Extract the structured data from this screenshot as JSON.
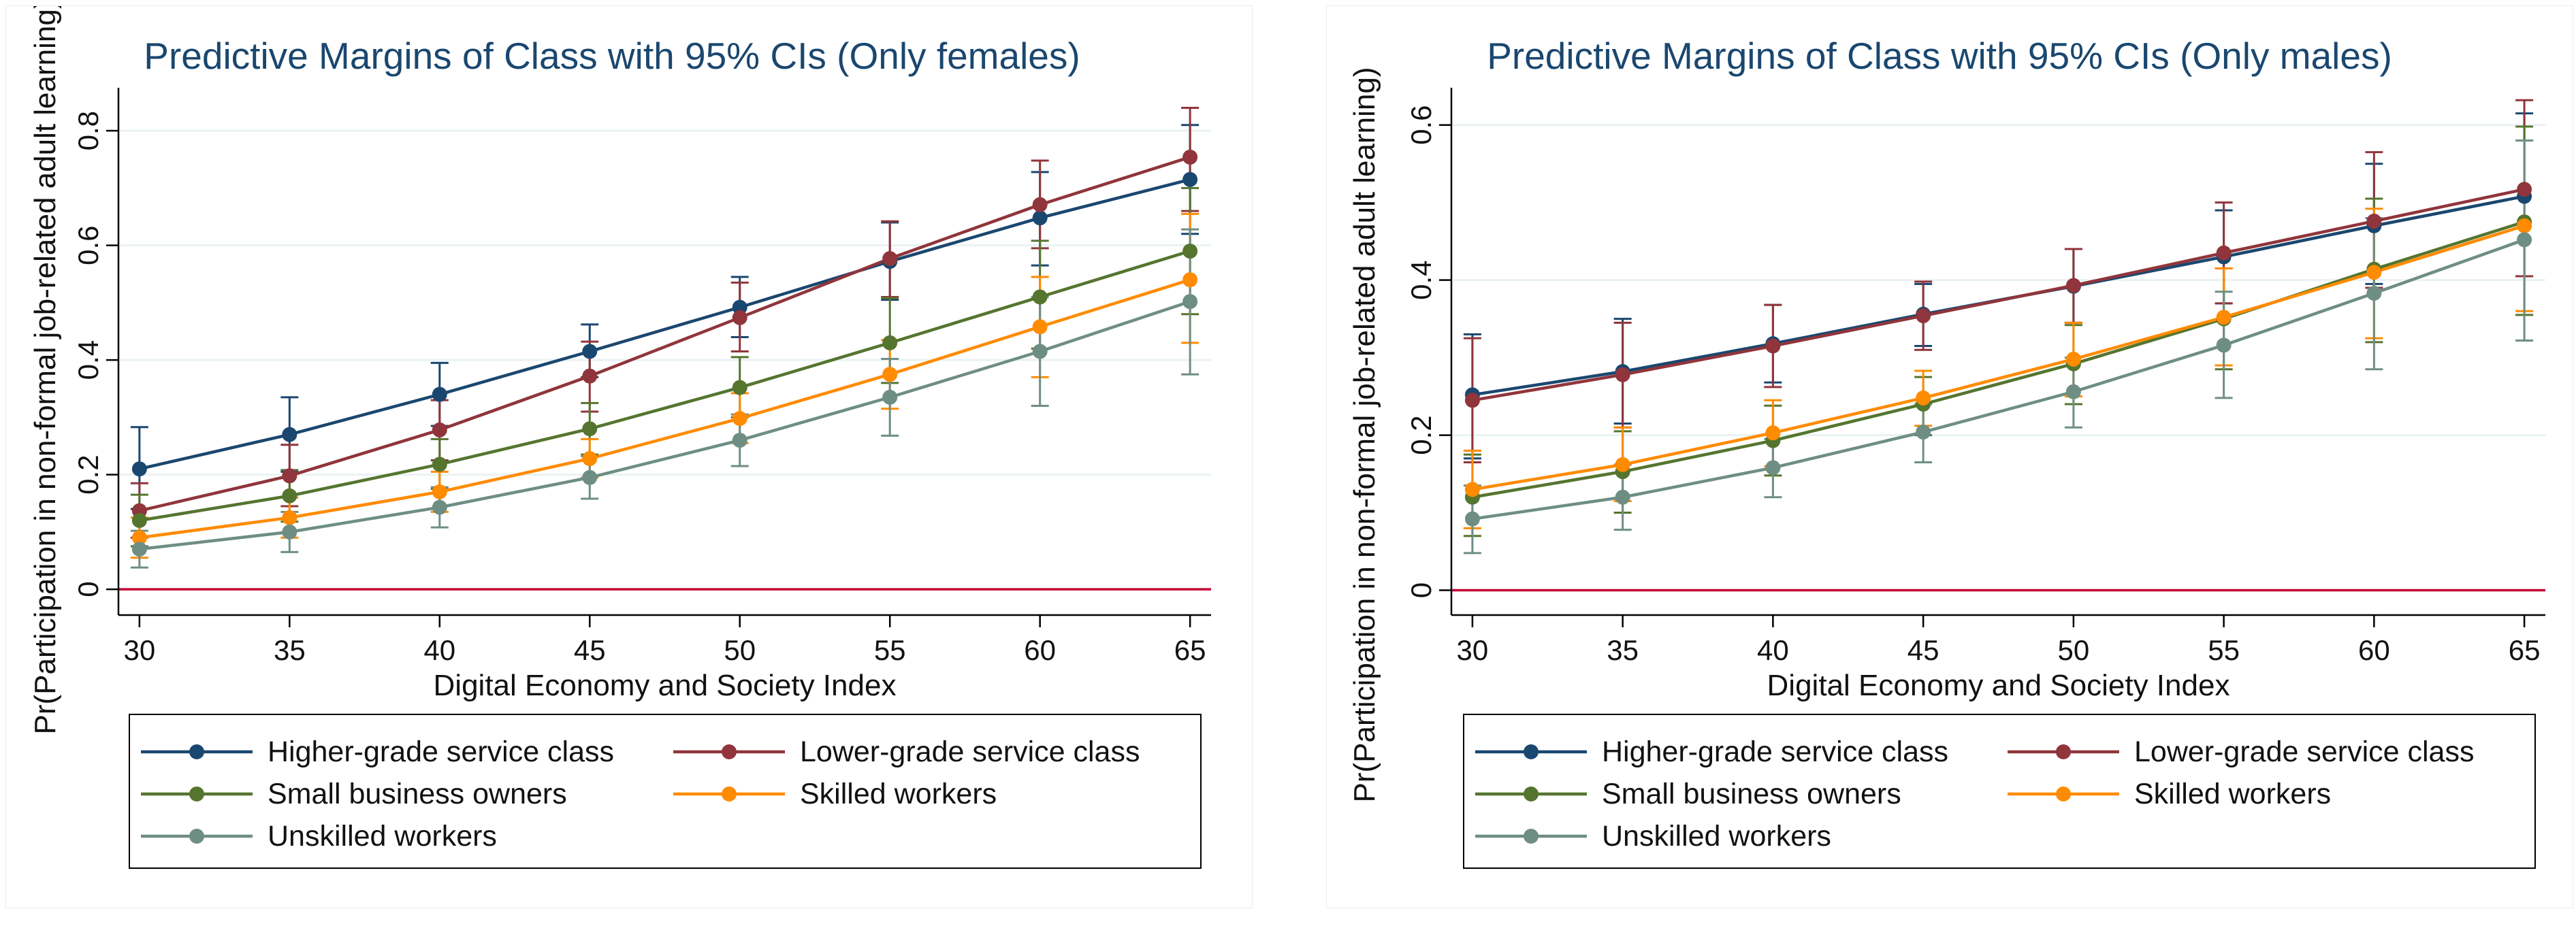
{
  "colors": {
    "higher": "#1a476f",
    "lower": "#90353b",
    "small": "#55752f",
    "skilled": "#ff8b00",
    "unskilled": "#6e8e84",
    "title": "#1a476f",
    "grid": "#eaf2f3",
    "zeroline": "#c10534",
    "axis": "#000000"
  },
  "chart_data": [
    {
      "type": "line",
      "title": "Predictive Margins of Class with 95% CIs (Only females)",
      "xlabel": "Digital Economy and Society Index",
      "ylabel": "Pr(Participation in non-formal job-related adult learning)",
      "x": [
        30,
        35,
        40,
        45,
        50,
        55,
        60,
        65
      ],
      "xticks": [
        "30",
        "35",
        "40",
        "45",
        "50",
        "55",
        "60",
        "65"
      ],
      "yticks": [
        "0",
        "0.2",
        "0.4",
        "0.6",
        "0.8"
      ],
      "ylim": [
        -0.045,
        0.875
      ],
      "xlim": [
        29.3,
        65.7
      ],
      "reference_line": 0,
      "legend_position": "bottom",
      "series": [
        {
          "name": "Higher-grade service class",
          "color_key": "higher",
          "values": [
            0.21,
            0.27,
            0.34,
            0.415,
            0.492,
            0.572,
            0.648,
            0.715
          ],
          "ci_low": [
            0.14,
            0.205,
            0.285,
            0.37,
            0.44,
            0.505,
            0.565,
            0.62
          ],
          "ci_high": [
            0.283,
            0.335,
            0.395,
            0.462,
            0.545,
            0.64,
            0.728,
            0.81
          ]
        },
        {
          "name": "Lower-grade service class",
          "color_key": "lower",
          "values": [
            0.137,
            0.198,
            0.278,
            0.372,
            0.474,
            0.577,
            0.671,
            0.754
          ],
          "ci_low": [
            0.09,
            0.145,
            0.225,
            0.31,
            0.415,
            0.51,
            0.595,
            0.66
          ],
          "ci_high": [
            0.185,
            0.252,
            0.33,
            0.432,
            0.535,
            0.642,
            0.748,
            0.84
          ]
        },
        {
          "name": "Small business owners",
          "color_key": "small",
          "values": [
            0.12,
            0.163,
            0.218,
            0.28,
            0.352,
            0.43,
            0.51,
            0.59
          ],
          "ci_low": [
            0.075,
            0.118,
            0.175,
            0.235,
            0.3,
            0.36,
            0.42,
            0.48
          ],
          "ci_high": [
            0.165,
            0.208,
            0.262,
            0.325,
            0.405,
            0.508,
            0.608,
            0.7
          ]
        },
        {
          "name": "Skilled workers",
          "color_key": "skilled",
          "values": [
            0.09,
            0.125,
            0.17,
            0.228,
            0.298,
            0.375,
            0.458,
            0.54
          ],
          "ci_low": [
            0.055,
            0.09,
            0.135,
            0.195,
            0.255,
            0.315,
            0.37,
            0.43
          ],
          "ci_high": [
            0.125,
            0.16,
            0.205,
            0.262,
            0.342,
            0.435,
            0.545,
            0.655
          ]
        },
        {
          "name": "Unskilled workers",
          "color_key": "unskilled",
          "values": [
            0.07,
            0.1,
            0.143,
            0.195,
            0.26,
            0.335,
            0.415,
            0.502
          ],
          "ci_low": [
            0.038,
            0.065,
            0.108,
            0.158,
            0.215,
            0.268,
            0.32,
            0.375
          ],
          "ci_high": [
            0.102,
            0.135,
            0.178,
            0.232,
            0.305,
            0.402,
            0.51,
            0.628
          ]
        }
      ],
      "legend": [
        "Higher-grade service class",
        "Lower-grade service class",
        "Small business owners",
        "Skilled workers",
        "Unskilled workers"
      ]
    },
    {
      "type": "line",
      "title": "Predictive Margins of Class with 95% CIs (Only males)",
      "xlabel": "Digital Economy and Society Index",
      "ylabel": "Pr(Participation in non-formal job-related adult learning)",
      "x": [
        30,
        35,
        40,
        45,
        50,
        55,
        60,
        65
      ],
      "xticks": [
        "30",
        "35",
        "40",
        "45",
        "50",
        "55",
        "60",
        "65"
      ],
      "yticks": [
        "0",
        "0.2",
        "0.4",
        "0.6"
      ],
      "ylim": [
        -0.032,
        0.648
      ],
      "xlim": [
        29.3,
        65.7
      ],
      "reference_line": 0,
      "legend_position": "bottom",
      "series": [
        {
          "name": "Higher-grade service class",
          "color_key": "higher",
          "values": [
            0.252,
            0.282,
            0.318,
            0.356,
            0.392,
            0.43,
            0.47,
            0.508
          ],
          "ci_low": [
            0.17,
            0.215,
            0.268,
            0.315,
            0.345,
            0.37,
            0.395,
            0.405
          ],
          "ci_high": [
            0.33,
            0.35,
            0.368,
            0.395,
            0.44,
            0.49,
            0.55,
            0.615
          ]
        },
        {
          "name": "Lower-grade service class",
          "color_key": "lower",
          "values": [
            0.245,
            0.278,
            0.315,
            0.354,
            0.393,
            0.435,
            0.476,
            0.517
          ],
          "ci_low": [
            0.165,
            0.21,
            0.262,
            0.31,
            0.345,
            0.37,
            0.39,
            0.405
          ],
          "ci_high": [
            0.325,
            0.345,
            0.368,
            0.398,
            0.44,
            0.5,
            0.565,
            0.632
          ]
        },
        {
          "name": "Small business owners",
          "color_key": "small",
          "values": [
            0.12,
            0.153,
            0.193,
            0.24,
            0.292,
            0.35,
            0.414,
            0.475
          ],
          "ci_low": [
            0.07,
            0.1,
            0.148,
            0.2,
            0.24,
            0.285,
            0.32,
            0.355
          ],
          "ci_high": [
            0.175,
            0.205,
            0.238,
            0.275,
            0.342,
            0.415,
            0.505,
            0.598
          ]
        },
        {
          "name": "Skilled workers",
          "color_key": "skilled",
          "values": [
            0.13,
            0.162,
            0.203,
            0.248,
            0.298,
            0.352,
            0.41,
            0.47
          ],
          "ci_low": [
            0.08,
            0.115,
            0.16,
            0.212,
            0.25,
            0.29,
            0.325,
            0.36
          ],
          "ci_high": [
            0.18,
            0.21,
            0.245,
            0.283,
            0.345,
            0.415,
            0.492,
            0.58
          ]
        },
        {
          "name": "Unskilled workers",
          "color_key": "unskilled",
          "values": [
            0.092,
            0.12,
            0.158,
            0.204,
            0.256,
            0.316,
            0.383,
            0.452
          ],
          "ci_low": [
            0.048,
            0.078,
            0.12,
            0.165,
            0.21,
            0.248,
            0.285,
            0.322
          ],
          "ci_high": [
            0.135,
            0.162,
            0.195,
            0.24,
            0.3,
            0.385,
            0.48,
            0.58
          ]
        }
      ],
      "legend": [
        "Higher-grade service class",
        "Lower-grade service class",
        "Small business owners",
        "Skilled workers",
        "Unskilled workers"
      ]
    }
  ]
}
